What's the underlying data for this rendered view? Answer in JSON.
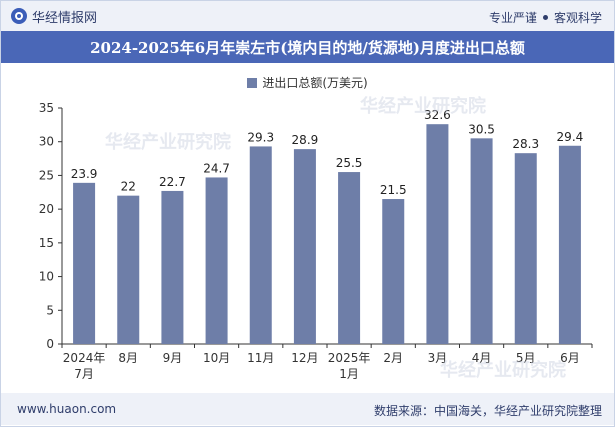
{
  "header": {
    "brand_name": "华经情报网",
    "slogan_left": "专业严谨",
    "slogan_right": "客观科学"
  },
  "watermark": "华经产业研究院",
  "chart_data": {
    "type": "bar",
    "title": "2024-2025年6月年崇左市(境内目的地/货源地)月度进出口总额",
    "legend": "进出口总额(万美元)",
    "categories": [
      "2024年\n7月",
      "8月",
      "9月",
      "10月",
      "11月",
      "12月",
      "2025年\n1月",
      "2月",
      "3月",
      "4月",
      "5月",
      "6月"
    ],
    "values": [
      23.9,
      22,
      22.7,
      24.7,
      29.3,
      28.9,
      25.5,
      21.5,
      32.6,
      30.5,
      28.3,
      29.4
    ],
    "ylim": [
      0,
      35
    ],
    "yticks": [
      0,
      5,
      10,
      15,
      20,
      25,
      30,
      35
    ],
    "bar_color": "#6e7ea8"
  },
  "footer": {
    "site": "www.huaon.com",
    "source": "数据来源：中国海关，华经产业研究院整理"
  }
}
